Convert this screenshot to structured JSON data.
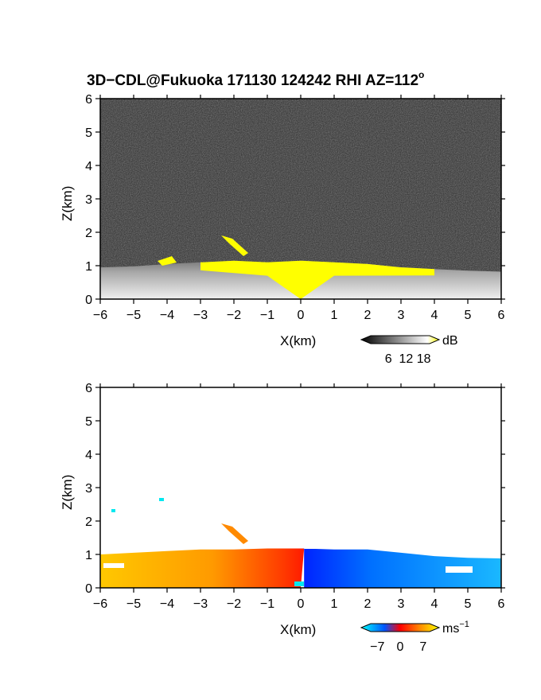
{
  "title": "3D−CDL@Fukuoka 171130 124242 RHI AZ=112",
  "title_superscript": "o",
  "chart_data": [
    {
      "type": "heatmap",
      "name": "reflectivity",
      "xlabel": "X(km)",
      "ylabel": "Z(km)",
      "xlim": [
        -6,
        6
      ],
      "ylim": [
        0,
        6
      ],
      "x_ticks": [
        -6,
        -5,
        -4,
        -3,
        -2,
        -1,
        0,
        1,
        2,
        3,
        4,
        5,
        6
      ],
      "x_tick_labels": [
        "−6",
        "−5",
        "−4",
        "−3",
        "−2",
        "−1",
        "0",
        "1",
        "2",
        "3",
        "4",
        "5",
        "6"
      ],
      "y_ticks": [
        0,
        1,
        2,
        3,
        4,
        5,
        6
      ],
      "y_tick_labels": [
        "0",
        "1",
        "2",
        "3",
        "4",
        "5",
        "6"
      ],
      "background_color": "#2a2a2a",
      "highlight_color": "#ffff00",
      "echo_top_km": [
        [
          -6,
          0.95
        ],
        [
          -5,
          0.98
        ],
        [
          -4,
          1.05
        ],
        [
          -3,
          1.1
        ],
        [
          -2,
          1.15
        ],
        [
          -1,
          1.1
        ],
        [
          0,
          1.15
        ],
        [
          1,
          1.1
        ],
        [
          2,
          1.05
        ],
        [
          3,
          0.95
        ],
        [
          4,
          0.9
        ],
        [
          5,
          0.85
        ],
        [
          6,
          0.82
        ]
      ],
      "colorbar": {
        "unit": "dB",
        "ticks": [
          6,
          12,
          18
        ],
        "tick_labels": [
          "6",
          "12",
          "18"
        ],
        "range": [
          0,
          20
        ],
        "colors": [
          "#000000",
          "#ffffff",
          "#ffff00"
        ]
      }
    },
    {
      "type": "heatmap",
      "name": "doppler_velocity",
      "xlabel": "X(km)",
      "ylabel": "Z(km)",
      "xlim": [
        -6,
        6
      ],
      "ylim": [
        0,
        6
      ],
      "x_ticks": [
        -6,
        -5,
        -4,
        -3,
        -2,
        -1,
        0,
        1,
        2,
        3,
        4,
        5,
        6
      ],
      "x_tick_labels": [
        "−6",
        "−5",
        "−4",
        "−3",
        "−2",
        "−1",
        "0",
        "1",
        "2",
        "3",
        "4",
        "5",
        "6"
      ],
      "y_ticks": [
        0,
        1,
        2,
        3,
        4,
        5,
        6
      ],
      "y_tick_labels": [
        "0",
        "1",
        "2",
        "3",
        "4",
        "5",
        "6"
      ],
      "background_color": "#ffffff",
      "echo_top_km": [
        [
          -6,
          1.0
        ],
        [
          -5,
          1.05
        ],
        [
          -4,
          1.1
        ],
        [
          -3,
          1.15
        ],
        [
          -2,
          1.15
        ],
        [
          -1,
          1.18
        ],
        [
          0,
          1.18
        ],
        [
          1,
          1.15
        ],
        [
          2,
          1.15
        ],
        [
          3,
          1.05
        ],
        [
          4,
          0.95
        ],
        [
          5,
          0.9
        ],
        [
          6,
          0.88
        ]
      ],
      "velocity_left_ms": 5,
      "velocity_right_ms": -4,
      "colorbar": {
        "unit_base": "ms",
        "unit_exp": "−1",
        "ticks": [
          -7,
          0,
          7
        ],
        "tick_labels": [
          "−7",
          "0",
          "7"
        ],
        "range": [
          -9,
          9
        ],
        "colors": [
          "#00ffff",
          "#0044ff",
          "#ff0000",
          "#ffff00"
        ]
      }
    }
  ]
}
